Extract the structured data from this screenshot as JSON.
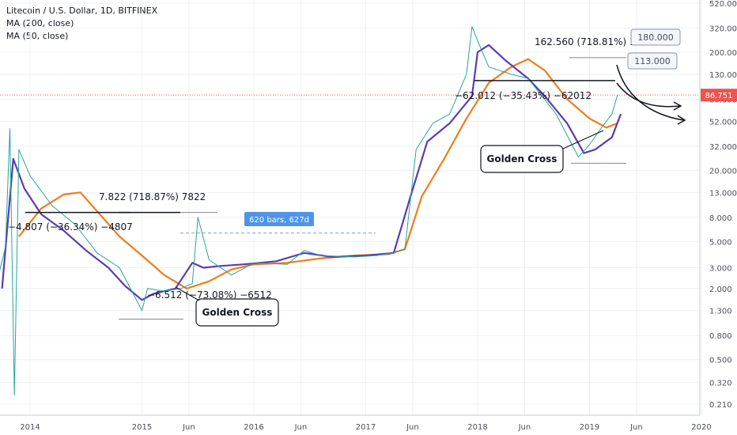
{
  "header": {
    "title": "Litecoin / U.S. Dollar, 1D, BITFINEX",
    "indicators": [
      "MA (200, close)",
      "MA (50, close)"
    ]
  },
  "chart_data": {
    "type": "line",
    "title": "Litecoin / U.S. Dollar, 1D, BITFINEX",
    "scale": "log",
    "ylim": [
      0.16,
      560
    ],
    "grid": true,
    "x_ticks": [
      "2014",
      "2015",
      "Jun",
      "2016",
      "Jun",
      "2017",
      "Jun",
      "2018",
      "Jun",
      "2019",
      "Jun",
      "2020"
    ],
    "y_ticks": [
      "520.000",
      "320.000",
      "200.000",
      "130.000",
      "80.000",
      "52.000",
      "32.000",
      "20.000",
      "13.000",
      "8.000",
      "5.000",
      "3.000",
      "2.000",
      "1.300",
      "0.800",
      "0.500",
      "0.320",
      "0.210"
    ],
    "current_price": "86.751",
    "series": [
      {
        "name": "MA (200, close)",
        "color": "#ef7d1a",
        "x": [
          2013.9,
          2014.1,
          2014.3,
          2014.45,
          2014.6,
          2014.8,
          2015.0,
          2015.2,
          2015.4,
          2015.6,
          2015.8,
          2016.0,
          2016.3,
          2016.6,
          2016.9,
          2017.2,
          2017.35,
          2017.5,
          2017.7,
          2017.9,
          2018.1,
          2018.3,
          2018.45,
          2018.6,
          2018.8,
          2019.0,
          2019.15,
          2019.25
        ],
        "values": [
          5.5,
          9.5,
          12.5,
          13,
          9,
          5.5,
          3.8,
          2.6,
          2.0,
          2.3,
          2.9,
          3.2,
          3.3,
          3.6,
          3.8,
          3.9,
          4.3,
          12,
          25,
          55,
          110,
          150,
          175,
          140,
          80,
          55,
          46,
          50
        ]
      },
      {
        "name": "MA (50, close)",
        "color": "#5b3db4",
        "x": [
          2013.75,
          2013.85,
          2013.95,
          2014.1,
          2014.3,
          2014.5,
          2014.7,
          2014.85,
          2015.0,
          2015.1,
          2015.3,
          2015.45,
          2015.55,
          2015.7,
          2015.9,
          2016.2,
          2016.45,
          2016.7,
          2017.0,
          2017.25,
          2017.4,
          2017.55,
          2017.75,
          2017.95,
          2018.0,
          2018.1,
          2018.25,
          2018.45,
          2018.6,
          2018.8,
          2018.95,
          2019.05,
          2019.2,
          2019.28
        ],
        "values": [
          2.0,
          25,
          14,
          8.5,
          6.2,
          4.2,
          3.0,
          2.1,
          1.6,
          1.8,
          2.0,
          3.3,
          3.0,
          3.1,
          3.2,
          3.4,
          4.0,
          3.7,
          3.8,
          4.0,
          12,
          35,
          50,
          85,
          200,
          230,
          170,
          120,
          85,
          50,
          28,
          30,
          38,
          60
        ]
      },
      {
        "name": "Price",
        "color": "#26a69a",
        "x": [
          2013.7,
          2013.78,
          2013.82,
          2013.86,
          2013.9,
          2014.0,
          2014.2,
          2014.4,
          2014.6,
          2014.8,
          2015.0,
          2015.05,
          2015.2,
          2015.35,
          2015.45,
          2015.5,
          2015.6,
          2015.8,
          2016.0,
          2016.3,
          2016.45,
          2016.6,
          2016.9,
          2017.1,
          2017.25,
          2017.35,
          2017.45,
          2017.6,
          2017.75,
          2017.9,
          2017.95,
          2018.0,
          2018.1,
          2018.3,
          2018.45,
          2018.7,
          2018.9,
          2019.0,
          2019.1,
          2019.2,
          2019.25
        ],
        "values": [
          2.2,
          4.5,
          45,
          0.25,
          30,
          18,
          10,
          7,
          4,
          3,
          1.3,
          2.0,
          1.9,
          2.0,
          2.2,
          8,
          3.5,
          2.6,
          3.3,
          3.2,
          4.2,
          3.8,
          3.7,
          3.8,
          4.0,
          4.3,
          30,
          50,
          60,
          130,
          330,
          250,
          150,
          130,
          120,
          60,
          26,
          33,
          45,
          60,
          87
        ]
      }
    ],
    "annotations": {
      "ranges": [
        {
          "label": "−4.807 (−36.34%) −4807"
        },
        {
          "label": "7.822 (718.87%) 7822"
        },
        {
          "label": "−6.512 (−73.08%) −6512"
        },
        {
          "label": "−62.012 (−35.43%) −62012"
        },
        {
          "label": "162.560 (718.81%) 162560"
        }
      ],
      "bars_label": "620 bars, 627d",
      "callouts": [
        "Golden Cross",
        "Golden Cross"
      ],
      "targets": [
        "180.000",
        "113.000"
      ]
    }
  }
}
